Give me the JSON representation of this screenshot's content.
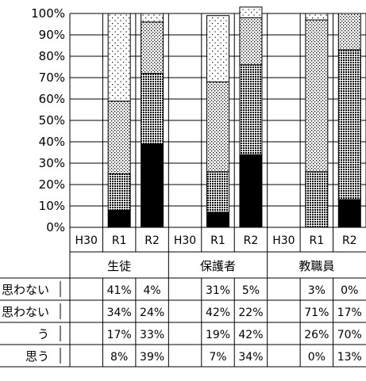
{
  "chart_data": {
    "type": "bar",
    "stacked": true,
    "percent_stacked": true,
    "y_ticks": [
      "0%",
      "10%",
      "20%",
      "30%",
      "40%",
      "50%",
      "60%",
      "70%",
      "80%",
      "90%",
      "100%"
    ],
    "ylim": [
      0,
      100
    ],
    "grid": true,
    "groups": [
      {
        "name": "生徒",
        "categories": [
          "H30",
          "R1",
          "R2"
        ]
      },
      {
        "name": "保護者",
        "categories": [
          "H30",
          "R1",
          "R2"
        ]
      },
      {
        "name": "教職員",
        "categories": [
          "H30",
          "R1",
          "R2"
        ]
      }
    ],
    "categories": [
      "H30",
      "R1",
      "R2",
      "H30",
      "R1",
      "R2",
      "H30",
      "R1",
      "R2"
    ],
    "series": [
      {
        "label": "思う",
        "pattern": "solid-black",
        "values": [
          null,
          8,
          39,
          null,
          7,
          34,
          null,
          0,
          13
        ],
        "cells": [
          "",
          "8%",
          "39%",
          "",
          "7%",
          "34%",
          "",
          "0%",
          "13%"
        ]
      },
      {
        "label": "う",
        "pattern": "dense-dots",
        "values": [
          null,
          17,
          33,
          null,
          19,
          42,
          null,
          26,
          70
        ],
        "cells": [
          "",
          "17%",
          "33%",
          "",
          "19%",
          "42%",
          "",
          "26%",
          "70%"
        ]
      },
      {
        "label": "思わない",
        "pattern": "medium-dots",
        "values": [
          null,
          34,
          24,
          null,
          42,
          22,
          null,
          71,
          17
        ],
        "cells": [
          "",
          "34%",
          "24%",
          "",
          "42%",
          "22%",
          "",
          "71%",
          "17%"
        ]
      },
      {
        "label": "思わない",
        "pattern": "sparse-dots",
        "values": [
          null,
          41,
          4,
          null,
          31,
          5,
          null,
          3,
          0
        ],
        "cells": [
          "",
          "41%",
          "4%",
          "",
          "31%",
          "5%",
          "",
          "3%",
          "0%"
        ]
      }
    ],
    "table_row_order": [
      3,
      2,
      1,
      0
    ]
  }
}
